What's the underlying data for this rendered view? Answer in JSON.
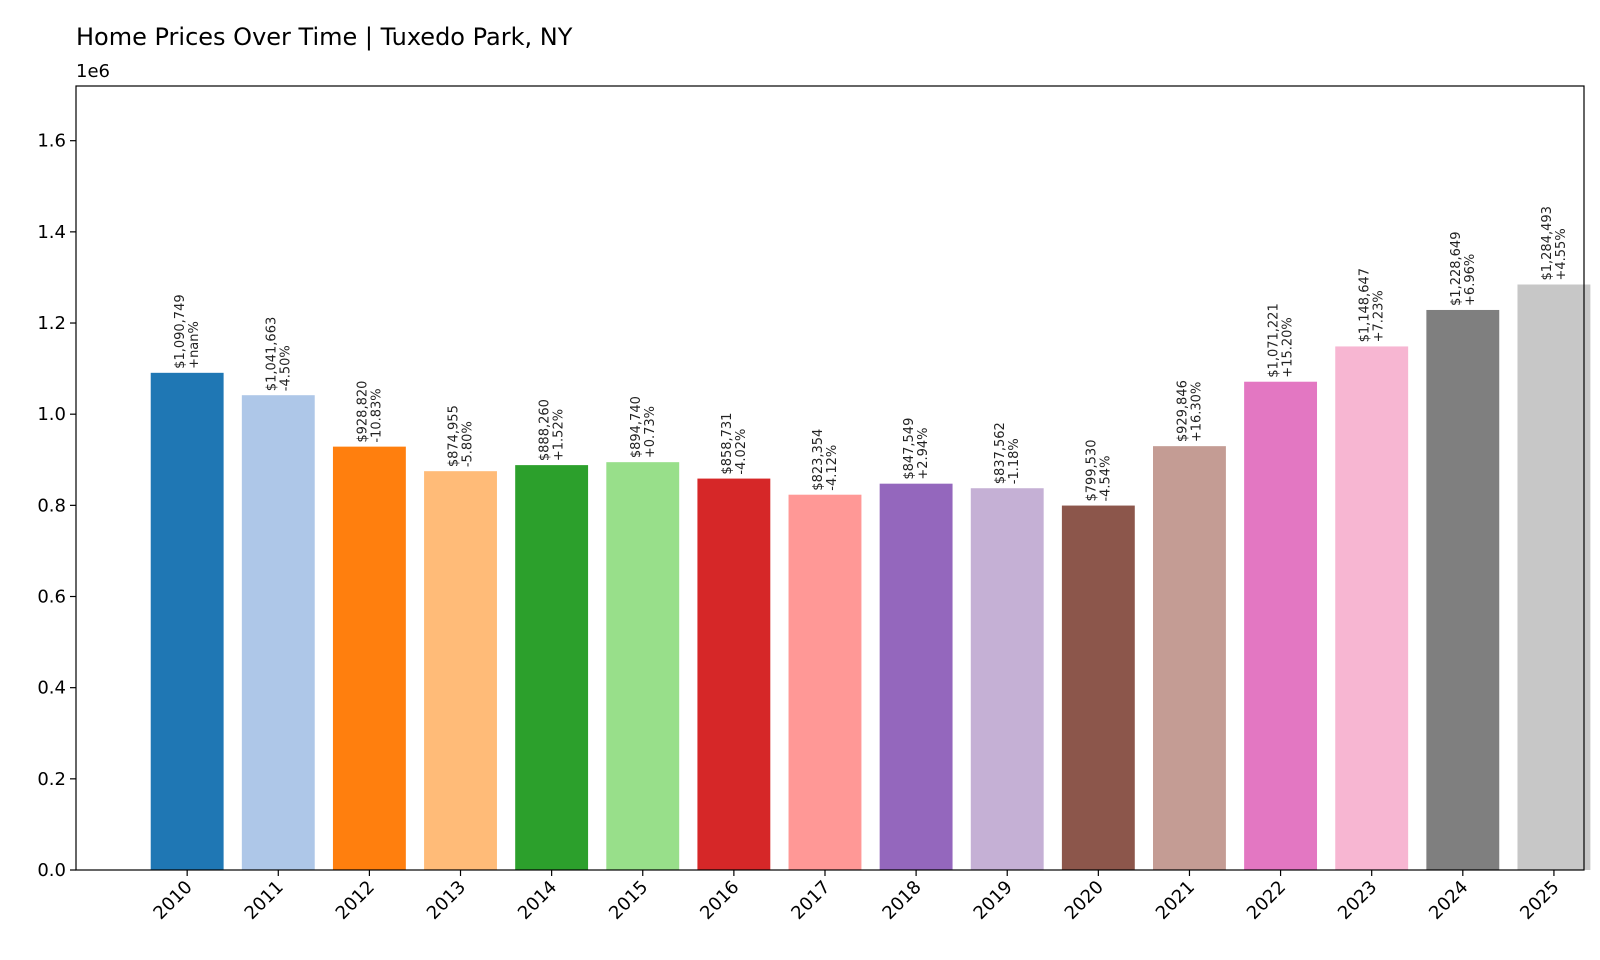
{
  "chart_data": {
    "type": "bar",
    "title": "Home Prices Over Time | Tuxedo Park, NY",
    "xlabel": "",
    "ylabel": "",
    "y_offset_label": "1e6",
    "y_scale_divisor": 1000000,
    "ylim": [
      0,
      1.72
    ],
    "yticks": [
      0.0,
      0.2,
      0.4,
      0.6,
      0.8,
      1.0,
      1.2,
      1.4,
      1.6
    ],
    "ytick_labels": [
      "0.0",
      "0.2",
      "0.4",
      "0.6",
      "0.8",
      "1.0",
      "1.2",
      "1.4",
      "1.6"
    ],
    "grid": false,
    "legend": "none",
    "categories": [
      "2010",
      "2011",
      "2012",
      "2013",
      "2014",
      "2015",
      "2016",
      "2017",
      "2018",
      "2019",
      "2020",
      "2021",
      "2022",
      "2023",
      "2024",
      "2025"
    ],
    "values": [
      1090749,
      1041663,
      928820,
      874955,
      888260,
      894740,
      858731,
      823354,
      847549,
      837562,
      799530,
      929846,
      1071221,
      1148647,
      1228649,
      1284493
    ],
    "price_labels": [
      "$1,090,749",
      "$1,041,663",
      "$928,820",
      "$874,955",
      "$888,260",
      "$894,740",
      "$858,731",
      "$823,354",
      "$847,549",
      "$837,562",
      "$799,530",
      "$929,846",
      "$1,071,221",
      "$1,148,647",
      "$1,228,649",
      "$1,284,493"
    ],
    "change_labels": [
      "+nan%",
      "-4.50%",
      "-10.83%",
      "-5.80%",
      "+1.52%",
      "+0.73%",
      "-4.02%",
      "-4.12%",
      "+2.94%",
      "-1.18%",
      "-4.54%",
      "+16.30%",
      "+15.20%",
      "+7.23%",
      "+6.96%",
      "+4.55%"
    ],
    "colors": [
      "#1f77b4",
      "#aec7e8",
      "#ff7f0e",
      "#ffbb78",
      "#2ca02c",
      "#98df8a",
      "#d62728",
      "#ff9896",
      "#9467bd",
      "#c5b0d5",
      "#8c564b",
      "#c49c94",
      "#e377c2",
      "#f7b6d2",
      "#7f7f7f",
      "#c7c7c7"
    ]
  }
}
